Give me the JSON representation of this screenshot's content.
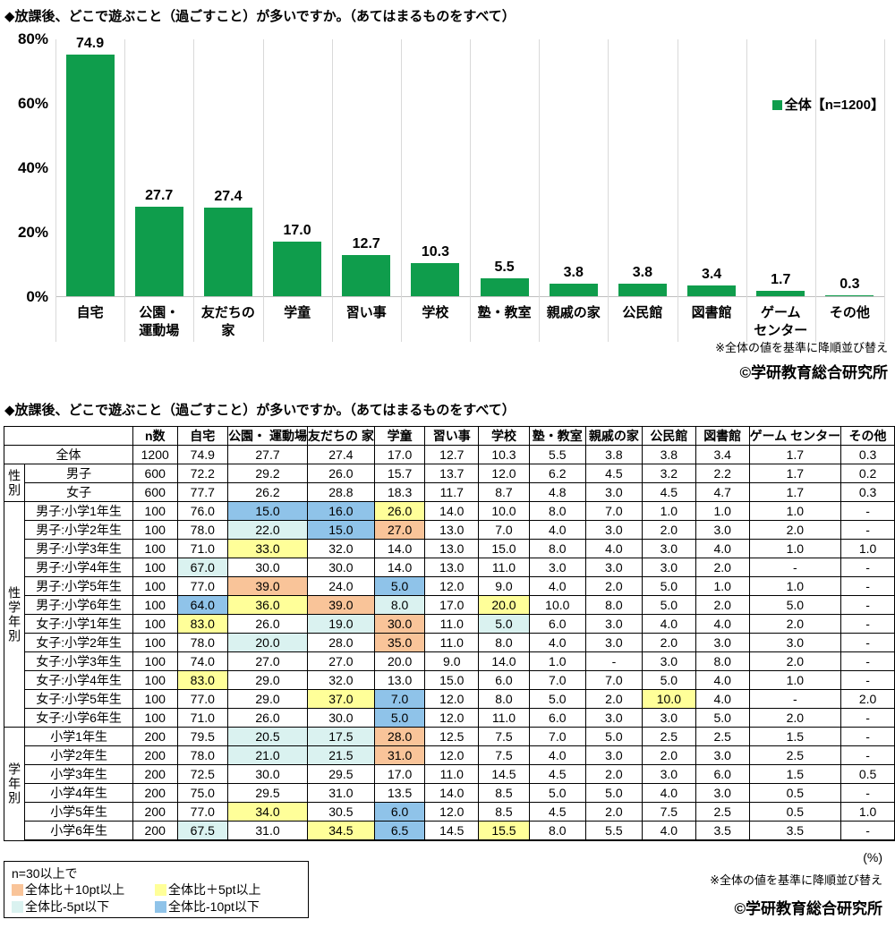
{
  "chart": {
    "title": "◆放課後、どこで遊ぶこと（過ごすこと）が多いですか。（あてはまるものをすべて）",
    "legend": "全体【n=1200】",
    "note_sort": "※全体の値を基準に降順並び替え",
    "copyright": "©学研教育総合研究所",
    "y_ticks": [
      "80%",
      "60%",
      "40%",
      "20%",
      "0%"
    ],
    "bar_color": "#0f9d4c",
    "axis_color": "#bfbfbf",
    "grid_color": "#d9d9d9",
    "categories_display": [
      "自宅",
      "公園・\n運動場",
      "友だちの\n家",
      "学童",
      "習い事",
      "学校",
      "塾・教室",
      "親戚の家",
      "公民館",
      "図書館",
      "ゲーム\nセンター",
      "その他"
    ]
  },
  "chart_data": {
    "type": "bar",
    "title": "放課後、どこで遊ぶこと（過ごすこと）が多いですか。（あてはまるものをすべて）",
    "categories": [
      "自宅",
      "公園・運動場",
      "友だちの家",
      "学童",
      "習い事",
      "学校",
      "塾・教室",
      "親戚の家",
      "公民館",
      "図書館",
      "ゲームセンター",
      "その他"
    ],
    "values": [
      74.9,
      27.7,
      27.4,
      17.0,
      12.7,
      10.3,
      5.5,
      3.8,
      3.8,
      3.4,
      1.7,
      0.3
    ],
    "series_name": "全体【n=1200】",
    "ylim": [
      0,
      80
    ],
    "ylabel": "%",
    "grid": "vertical category separators only",
    "legend_position": "right",
    "value_labels": true,
    "sort_note": "※全体の値を基準に降順並び替え"
  },
  "table": {
    "title": "◆放課後、どこで遊ぶこと（過ごすこと）が多いですか。（あてはまるものをすべて）",
    "unit": "(%)",
    "note_sort": "※全体の値を基準に降順並び替え",
    "copyright": "©学研教育総合研究所",
    "n_label": "n数",
    "columns": [
      "自宅",
      "公園・\n運動場",
      "友だちの\n家",
      "学童",
      "習い事",
      "学校",
      "塾・教室",
      "親戚の家",
      "公民館",
      "図書館",
      "ゲーム\nセンター",
      "その他"
    ],
    "highlight_colors": {
      "p10": "#F9C499",
      "p5": "#FFFF99",
      "m5": "#DAF2F0",
      "m10": "#8FC3E9"
    },
    "legend": {
      "title": "n=30以上で",
      "items": [
        {
          "key": "p10",
          "label": "全体比＋10pt以上"
        },
        {
          "key": "p5",
          "label": "全体比＋5pt以上"
        },
        {
          "key": "m5",
          "label": "全体比-5pt以下"
        },
        {
          "key": "m10",
          "label": "全体比-10pt以下"
        }
      ]
    },
    "rows": [
      {
        "label": "全体",
        "label_colspan": 2,
        "n": "1200",
        "section": true,
        "values": [
          "74.9",
          "27.7",
          "27.4",
          "17.0",
          "12.7",
          "10.3",
          "5.5",
          "3.8",
          "3.8",
          "3.4",
          "1.7",
          "0.3"
        ],
        "hl": {}
      },
      {
        "group": "性別",
        "group_span": 2,
        "label": "男子",
        "n": "600",
        "section": true,
        "values": [
          "72.2",
          "29.2",
          "26.0",
          "15.7",
          "13.7",
          "12.0",
          "6.2",
          "4.5",
          "3.2",
          "2.2",
          "1.7",
          "0.2"
        ],
        "hl": {}
      },
      {
        "label": "女子",
        "n": "600",
        "values": [
          "77.7",
          "26.2",
          "28.8",
          "18.3",
          "11.7",
          "8.7",
          "4.8",
          "3.0",
          "4.5",
          "4.7",
          "1.7",
          "0.3"
        ],
        "hl": {}
      },
      {
        "group": "性学年別",
        "group_span": 12,
        "label": "男子:小学1年生",
        "n": "100",
        "section": true,
        "values": [
          "76.0",
          "15.0",
          "16.0",
          "26.0",
          "14.0",
          "10.0",
          "8.0",
          "7.0",
          "1.0",
          "1.0",
          "1.0",
          "-"
        ],
        "hl": {
          "1": "m10",
          "2": "m10",
          "3": "p5"
        }
      },
      {
        "label": "男子:小学2年生",
        "n": "100",
        "values": [
          "78.0",
          "22.0",
          "15.0",
          "27.0",
          "13.0",
          "7.0",
          "4.0",
          "3.0",
          "2.0",
          "3.0",
          "2.0",
          "-"
        ],
        "hl": {
          "1": "m5",
          "2": "m10",
          "3": "p10"
        }
      },
      {
        "label": "男子:小学3年生",
        "n": "100",
        "values": [
          "71.0",
          "33.0",
          "32.0",
          "14.0",
          "13.0",
          "15.0",
          "8.0",
          "4.0",
          "3.0",
          "4.0",
          "1.0",
          "1.0"
        ],
        "hl": {
          "1": "p5"
        }
      },
      {
        "label": "男子:小学4年生",
        "n": "100",
        "values": [
          "67.0",
          "30.0",
          "30.0",
          "14.0",
          "13.0",
          "11.0",
          "3.0",
          "3.0",
          "3.0",
          "2.0",
          "-",
          "-"
        ],
        "hl": {
          "0": "m5"
        }
      },
      {
        "label": "男子:小学5年生",
        "n": "100",
        "values": [
          "77.0",
          "39.0",
          "24.0",
          "5.0",
          "12.0",
          "9.0",
          "4.0",
          "2.0",
          "5.0",
          "1.0",
          "1.0",
          "-"
        ],
        "hl": {
          "1": "p10",
          "3": "m10"
        }
      },
      {
        "label": "男子:小学6年生",
        "n": "100",
        "values": [
          "64.0",
          "36.0",
          "39.0",
          "8.0",
          "17.0",
          "20.0",
          "10.0",
          "8.0",
          "5.0",
          "2.0",
          "5.0",
          "-"
        ],
        "hl": {
          "0": "m10",
          "1": "p5",
          "2": "p10",
          "3": "m5",
          "5": "p5"
        }
      },
      {
        "label": "女子:小学1年生",
        "n": "100",
        "values": [
          "83.0",
          "26.0",
          "19.0",
          "30.0",
          "11.0",
          "5.0",
          "6.0",
          "3.0",
          "4.0",
          "4.0",
          "2.0",
          "-"
        ],
        "hl": {
          "0": "p5",
          "2": "m5",
          "3": "p10",
          "5": "m5"
        }
      },
      {
        "label": "女子:小学2年生",
        "n": "100",
        "values": [
          "78.0",
          "20.0",
          "28.0",
          "35.0",
          "11.0",
          "8.0",
          "4.0",
          "3.0",
          "2.0",
          "3.0",
          "3.0",
          "-"
        ],
        "hl": {
          "1": "m5",
          "3": "p10"
        }
      },
      {
        "label": "女子:小学3年生",
        "n": "100",
        "values": [
          "74.0",
          "27.0",
          "27.0",
          "20.0",
          "9.0",
          "14.0",
          "1.0",
          "-",
          "3.0",
          "8.0",
          "2.0",
          "-"
        ],
        "hl": {}
      },
      {
        "label": "女子:小学4年生",
        "n": "100",
        "values": [
          "83.0",
          "29.0",
          "32.0",
          "13.0",
          "15.0",
          "6.0",
          "7.0",
          "7.0",
          "5.0",
          "4.0",
          "1.0",
          "-"
        ],
        "hl": {
          "0": "p5"
        }
      },
      {
        "label": "女子:小学5年生",
        "n": "100",
        "values": [
          "77.0",
          "29.0",
          "37.0",
          "7.0",
          "12.0",
          "8.0",
          "5.0",
          "2.0",
          "10.0",
          "4.0",
          "-",
          "2.0"
        ],
        "hl": {
          "2": "p5",
          "3": "m10",
          "8": "p5"
        }
      },
      {
        "label": "女子:小学6年生",
        "n": "100",
        "values": [
          "71.0",
          "26.0",
          "30.0",
          "5.0",
          "12.0",
          "11.0",
          "6.0",
          "3.0",
          "3.0",
          "5.0",
          "2.0",
          "-"
        ],
        "hl": {
          "3": "m10"
        }
      },
      {
        "group": "学年別",
        "group_span": 6,
        "label": "小学1年生",
        "n": "200",
        "section": true,
        "values": [
          "79.5",
          "20.5",
          "17.5",
          "28.0",
          "12.5",
          "7.5",
          "7.0",
          "5.0",
          "2.5",
          "2.5",
          "1.5",
          "-"
        ],
        "hl": {
          "1": "m5",
          "2": "m5",
          "3": "p10"
        }
      },
      {
        "label": "小学2年生",
        "n": "200",
        "values": [
          "78.0",
          "21.0",
          "21.5",
          "31.0",
          "12.0",
          "7.5",
          "4.0",
          "3.0",
          "2.0",
          "3.0",
          "2.5",
          "-"
        ],
        "hl": {
          "1": "m5",
          "2": "m5",
          "3": "p10"
        }
      },
      {
        "label": "小学3年生",
        "n": "200",
        "values": [
          "72.5",
          "30.0",
          "29.5",
          "17.0",
          "11.0",
          "14.5",
          "4.5",
          "2.0",
          "3.0",
          "6.0",
          "1.5",
          "0.5"
        ],
        "hl": {}
      },
      {
        "label": "小学4年生",
        "n": "200",
        "values": [
          "75.0",
          "29.5",
          "31.0",
          "13.5",
          "14.0",
          "8.5",
          "5.0",
          "5.0",
          "4.0",
          "3.0",
          "0.5",
          "-"
        ],
        "hl": {}
      },
      {
        "label": "小学5年生",
        "n": "200",
        "values": [
          "77.0",
          "34.0",
          "30.5",
          "6.0",
          "12.0",
          "8.5",
          "4.5",
          "2.0",
          "7.5",
          "2.5",
          "0.5",
          "1.0"
        ],
        "hl": {
          "1": "p5",
          "3": "m10"
        }
      },
      {
        "label": "小学6年生",
        "n": "200",
        "values": [
          "67.5",
          "31.0",
          "34.5",
          "6.5",
          "14.5",
          "15.5",
          "8.0",
          "5.5",
          "4.0",
          "3.5",
          "3.5",
          "-"
        ],
        "hl": {
          "0": "m5",
          "2": "p5",
          "3": "m10",
          "5": "p5"
        }
      }
    ]
  }
}
